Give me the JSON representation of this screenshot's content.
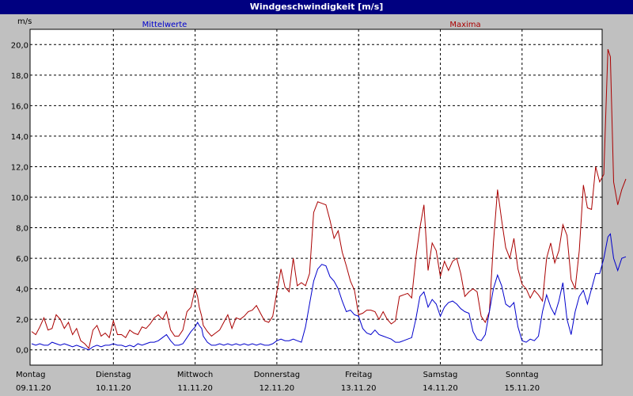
{
  "window": {
    "title": "Windgeschwindigkeit [m/s]"
  },
  "colors": {
    "mean": "#0000cc",
    "max": "#aa0000",
    "grid": "#000000",
    "plot_bg": "#ffffff"
  },
  "chart_data": {
    "type": "line",
    "title": "Windgeschwindigkeit [m/s]",
    "ylabel": "m/s",
    "ylim": [
      -1.0,
      21.0
    ],
    "yticks": [
      0.0,
      2.0,
      4.0,
      6.0,
      8.0,
      10.0,
      12.0,
      14.0,
      16.0,
      18.0,
      20.0
    ],
    "ytick_labels": [
      "0,0",
      "2,0",
      "4,0",
      "6,0",
      "8,0",
      "10,0",
      "12,0",
      "14,0",
      "16,0",
      "18,0",
      "20,0"
    ],
    "xlim": [
      0,
      7.07
    ],
    "days": [
      {
        "x": 0,
        "weekday": "Montag",
        "date": "09.11.20"
      },
      {
        "x": 1,
        "weekday": "Dienstag",
        "date": "10.11.20"
      },
      {
        "x": 2,
        "weekday": "Mittwoch",
        "date": "11.11.20"
      },
      {
        "x": 3,
        "weekday": "Donnerstag",
        "date": "12.11.20"
      },
      {
        "x": 4,
        "weekday": "Freitag",
        "date": "13.11.20"
      },
      {
        "x": 5,
        "weekday": "Samstag",
        "date": "14.11.20"
      },
      {
        "x": 6,
        "weekday": "Sonntag",
        "date": "15.11.20"
      }
    ],
    "grid": true,
    "series": [
      {
        "name": "Mittelwerte",
        "color": "#0000cc",
        "points": [
          [
            0.0,
            0.4
          ],
          [
            0.05,
            0.3
          ],
          [
            0.1,
            0.4
          ],
          [
            0.15,
            0.3
          ],
          [
            0.2,
            0.3
          ],
          [
            0.25,
            0.5
          ],
          [
            0.3,
            0.4
          ],
          [
            0.35,
            0.3
          ],
          [
            0.4,
            0.4
          ],
          [
            0.45,
            0.3
          ],
          [
            0.5,
            0.2
          ],
          [
            0.55,
            0.3
          ],
          [
            0.6,
            0.2
          ],
          [
            0.65,
            0.1
          ],
          [
            0.7,
            0.0
          ],
          [
            0.75,
            0.2
          ],
          [
            0.8,
            0.3
          ],
          [
            0.85,
            0.2
          ],
          [
            0.9,
            0.3
          ],
          [
            0.95,
            0.3
          ],
          [
            1.0,
            0.4
          ],
          [
            1.05,
            0.3
          ],
          [
            1.1,
            0.3
          ],
          [
            1.15,
            0.2
          ],
          [
            1.2,
            0.3
          ],
          [
            1.25,
            0.2
          ],
          [
            1.3,
            0.4
          ],
          [
            1.35,
            0.3
          ],
          [
            1.4,
            0.4
          ],
          [
            1.45,
            0.5
          ],
          [
            1.5,
            0.5
          ],
          [
            1.55,
            0.6
          ],
          [
            1.6,
            0.8
          ],
          [
            1.65,
            1.0
          ],
          [
            1.7,
            0.6
          ],
          [
            1.75,
            0.3
          ],
          [
            1.8,
            0.3
          ],
          [
            1.85,
            0.4
          ],
          [
            1.9,
            0.8
          ],
          [
            1.95,
            1.2
          ],
          [
            2.0,
            1.5
          ],
          [
            2.03,
            1.8
          ],
          [
            2.05,
            1.6
          ],
          [
            2.08,
            1.4
          ],
          [
            2.1,
            0.9
          ],
          [
            2.15,
            0.5
          ],
          [
            2.2,
            0.3
          ],
          [
            2.25,
            0.3
          ],
          [
            2.3,
            0.4
          ],
          [
            2.35,
            0.3
          ],
          [
            2.4,
            0.4
          ],
          [
            2.45,
            0.3
          ],
          [
            2.5,
            0.4
          ],
          [
            2.55,
            0.3
          ],
          [
            2.6,
            0.4
          ],
          [
            2.65,
            0.3
          ],
          [
            2.7,
            0.4
          ],
          [
            2.75,
            0.3
          ],
          [
            2.8,
            0.4
          ],
          [
            2.85,
            0.3
          ],
          [
            2.9,
            0.3
          ],
          [
            2.95,
            0.4
          ],
          [
            3.0,
            0.6
          ],
          [
            3.05,
            0.7
          ],
          [
            3.1,
            0.6
          ],
          [
            3.15,
            0.6
          ],
          [
            3.2,
            0.7
          ],
          [
            3.25,
            0.6
          ],
          [
            3.3,
            0.5
          ],
          [
            3.35,
            1.5
          ],
          [
            3.4,
            3.0
          ],
          [
            3.45,
            4.5
          ],
          [
            3.5,
            5.3
          ],
          [
            3.55,
            5.6
          ],
          [
            3.6,
            5.5
          ],
          [
            3.65,
            4.8
          ],
          [
            3.7,
            4.5
          ],
          [
            3.75,
            4.0
          ],
          [
            3.8,
            3.2
          ],
          [
            3.85,
            2.5
          ],
          [
            3.9,
            2.6
          ],
          [
            3.95,
            2.3
          ],
          [
            4.0,
            2.2
          ],
          [
            4.05,
            1.4
          ],
          [
            4.1,
            1.1
          ],
          [
            4.15,
            1.0
          ],
          [
            4.2,
            1.3
          ],
          [
            4.25,
            1.0
          ],
          [
            4.3,
            0.9
          ],
          [
            4.35,
            0.8
          ],
          [
            4.4,
            0.7
          ],
          [
            4.45,
            0.5
          ],
          [
            4.5,
            0.5
          ],
          [
            4.55,
            0.6
          ],
          [
            4.6,
            0.7
          ],
          [
            4.65,
            0.8
          ],
          [
            4.7,
            2.0
          ],
          [
            4.75,
            3.5
          ],
          [
            4.8,
            3.8
          ],
          [
            4.85,
            2.8
          ],
          [
            4.9,
            3.3
          ],
          [
            4.95,
            3.0
          ],
          [
            5.0,
            2.2
          ],
          [
            5.05,
            2.8
          ],
          [
            5.1,
            3.1
          ],
          [
            5.15,
            3.2
          ],
          [
            5.2,
            3.0
          ],
          [
            5.25,
            2.7
          ],
          [
            5.3,
            2.5
          ],
          [
            5.35,
            2.4
          ],
          [
            5.4,
            1.2
          ],
          [
            5.45,
            0.7
          ],
          [
            5.5,
            0.6
          ],
          [
            5.55,
            1.0
          ],
          [
            5.6,
            2.5
          ],
          [
            5.65,
            4.0
          ],
          [
            5.7,
            4.9
          ],
          [
            5.75,
            4.2
          ],
          [
            5.8,
            3.0
          ],
          [
            5.85,
            2.8
          ],
          [
            5.9,
            3.1
          ],
          [
            5.95,
            1.5
          ],
          [
            6.0,
            0.6
          ],
          [
            6.05,
            0.5
          ],
          [
            6.1,
            0.7
          ],
          [
            6.15,
            0.6
          ],
          [
            6.2,
            0.9
          ],
          [
            6.25,
            2.5
          ],
          [
            6.3,
            3.6
          ],
          [
            6.35,
            2.8
          ],
          [
            6.4,
            2.3
          ],
          [
            6.45,
            3.2
          ],
          [
            6.5,
            4.4
          ],
          [
            6.55,
            2.0
          ],
          [
            6.6,
            1.0
          ],
          [
            6.65,
            2.5
          ],
          [
            6.7,
            3.5
          ],
          [
            6.75,
            3.9
          ],
          [
            6.8,
            3.0
          ],
          [
            6.85,
            4.0
          ],
          [
            6.9,
            5.0
          ],
          [
            6.95,
            5.0
          ],
          [
            7.0,
            6.0
          ],
          [
            7.05,
            7.4
          ],
          [
            7.08,
            7.6
          ],
          [
            7.12,
            6.0
          ],
          [
            7.17,
            5.2
          ],
          [
            7.22,
            6.0
          ],
          [
            7.27,
            6.1
          ]
        ]
      },
      {
        "name": "Maxima",
        "color": "#aa0000",
        "points": [
          [
            0.0,
            1.2
          ],
          [
            0.05,
            1.0
          ],
          [
            0.1,
            1.5
          ],
          [
            0.15,
            2.1
          ],
          [
            0.2,
            1.3
          ],
          [
            0.25,
            1.4
          ],
          [
            0.3,
            2.3
          ],
          [
            0.35,
            2.0
          ],
          [
            0.4,
            1.4
          ],
          [
            0.45,
            1.8
          ],
          [
            0.5,
            1.0
          ],
          [
            0.55,
            1.4
          ],
          [
            0.6,
            0.6
          ],
          [
            0.65,
            0.4
          ],
          [
            0.7,
            0.1
          ],
          [
            0.75,
            1.3
          ],
          [
            0.8,
            1.6
          ],
          [
            0.85,
            0.9
          ],
          [
            0.9,
            1.1
          ],
          [
            0.95,
            0.8
          ],
          [
            1.0,
            1.9
          ],
          [
            1.05,
            1.0
          ],
          [
            1.1,
            1.0
          ],
          [
            1.15,
            0.8
          ],
          [
            1.2,
            1.3
          ],
          [
            1.25,
            1.1
          ],
          [
            1.3,
            1.0
          ],
          [
            1.35,
            1.5
          ],
          [
            1.4,
            1.4
          ],
          [
            1.45,
            1.7
          ],
          [
            1.5,
            2.1
          ],
          [
            1.55,
            2.3
          ],
          [
            1.6,
            2.0
          ],
          [
            1.65,
            2.5
          ],
          [
            1.7,
            1.3
          ],
          [
            1.75,
            0.9
          ],
          [
            1.8,
            0.9
          ],
          [
            1.85,
            1.3
          ],
          [
            1.9,
            2.5
          ],
          [
            1.95,
            2.8
          ],
          [
            2.0,
            4.0
          ],
          [
            2.03,
            3.5
          ],
          [
            2.05,
            2.8
          ],
          [
            2.08,
            2.2
          ],
          [
            2.1,
            1.6
          ],
          [
            2.15,
            1.2
          ],
          [
            2.2,
            0.9
          ],
          [
            2.25,
            1.1
          ],
          [
            2.3,
            1.3
          ],
          [
            2.35,
            1.8
          ],
          [
            2.4,
            2.3
          ],
          [
            2.45,
            1.4
          ],
          [
            2.5,
            2.1
          ],
          [
            2.55,
            2.0
          ],
          [
            2.6,
            2.2
          ],
          [
            2.65,
            2.5
          ],
          [
            2.7,
            2.6
          ],
          [
            2.75,
            2.9
          ],
          [
            2.8,
            2.4
          ],
          [
            2.85,
            1.9
          ],
          [
            2.9,
            1.8
          ],
          [
            2.95,
            2.2
          ],
          [
            3.0,
            3.8
          ],
          [
            3.05,
            5.3
          ],
          [
            3.1,
            4.1
          ],
          [
            3.15,
            3.8
          ],
          [
            3.2,
            6.0
          ],
          [
            3.25,
            4.2
          ],
          [
            3.3,
            4.4
          ],
          [
            3.35,
            4.2
          ],
          [
            3.4,
            5.0
          ],
          [
            3.45,
            9.0
          ],
          [
            3.5,
            9.7
          ],
          [
            3.55,
            9.6
          ],
          [
            3.6,
            9.5
          ],
          [
            3.65,
            8.5
          ],
          [
            3.7,
            7.3
          ],
          [
            3.75,
            7.8
          ],
          [
            3.8,
            6.4
          ],
          [
            3.85,
            5.5
          ],
          [
            3.9,
            4.5
          ],
          [
            3.95,
            3.9
          ],
          [
            4.0,
            2.3
          ],
          [
            4.05,
            2.4
          ],
          [
            4.1,
            2.6
          ],
          [
            4.15,
            2.6
          ],
          [
            4.2,
            2.5
          ],
          [
            4.25,
            2.0
          ],
          [
            4.3,
            2.5
          ],
          [
            4.35,
            2.0
          ],
          [
            4.4,
            1.7
          ],
          [
            4.45,
            1.9
          ],
          [
            4.5,
            3.5
          ],
          [
            4.55,
            3.6
          ],
          [
            4.6,
            3.7
          ],
          [
            4.65,
            3.4
          ],
          [
            4.7,
            6.0
          ],
          [
            4.75,
            8.0
          ],
          [
            4.8,
            9.5
          ],
          [
            4.85,
            5.2
          ],
          [
            4.9,
            7.0
          ],
          [
            4.95,
            6.5
          ],
          [
            5.0,
            4.8
          ],
          [
            5.05,
            5.8
          ],
          [
            5.1,
            5.2
          ],
          [
            5.15,
            5.8
          ],
          [
            5.2,
            6.0
          ],
          [
            5.25,
            5.0
          ],
          [
            5.3,
            3.5
          ],
          [
            5.35,
            3.8
          ],
          [
            5.4,
            4.0
          ],
          [
            5.45,
            3.8
          ],
          [
            5.5,
            2.2
          ],
          [
            5.55,
            1.8
          ],
          [
            5.6,
            2.5
          ],
          [
            5.65,
            7.0
          ],
          [
            5.7,
            10.5
          ],
          [
            5.75,
            8.5
          ],
          [
            5.8,
            6.7
          ],
          [
            5.85,
            6.0
          ],
          [
            5.9,
            7.3
          ],
          [
            5.95,
            5.3
          ],
          [
            6.0,
            4.3
          ],
          [
            6.05,
            4.0
          ],
          [
            6.1,
            3.4
          ],
          [
            6.15,
            3.9
          ],
          [
            6.2,
            3.6
          ],
          [
            6.25,
            3.2
          ],
          [
            6.3,
            6.0
          ],
          [
            6.35,
            7.0
          ],
          [
            6.4,
            5.7
          ],
          [
            6.45,
            6.5
          ],
          [
            6.5,
            8.2
          ],
          [
            6.55,
            7.5
          ],
          [
            6.6,
            4.6
          ],
          [
            6.65,
            4.0
          ],
          [
            6.7,
            6.5
          ],
          [
            6.75,
            10.8
          ],
          [
            6.8,
            9.3
          ],
          [
            6.85,
            9.2
          ],
          [
            6.9,
            12.0
          ],
          [
            6.95,
            11.0
          ],
          [
            7.0,
            11.5
          ],
          [
            7.05,
            19.7
          ],
          [
            7.08,
            19.2
          ],
          [
            7.12,
            11.0
          ],
          [
            7.17,
            9.5
          ],
          [
            7.22,
            10.5
          ],
          [
            7.27,
            11.2
          ]
        ]
      }
    ]
  }
}
